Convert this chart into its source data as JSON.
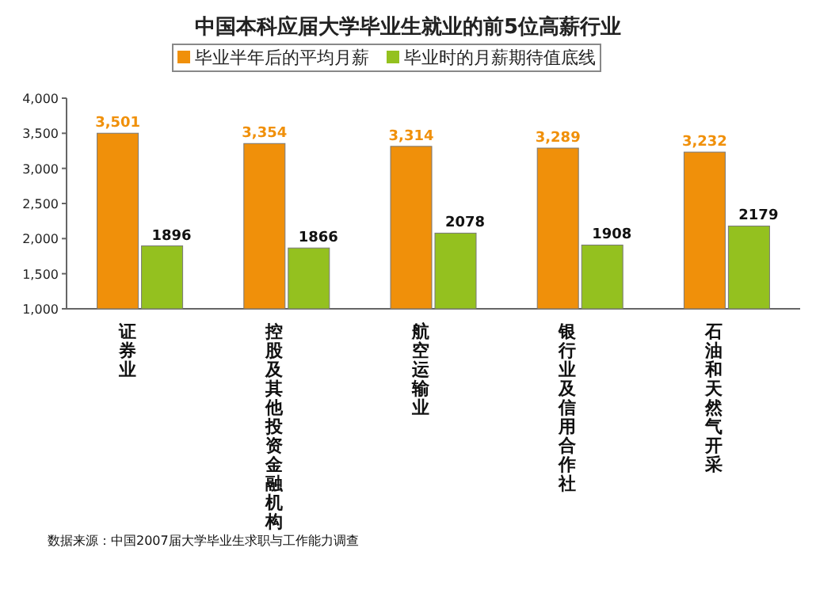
{
  "chart_data": {
    "type": "bar",
    "title": "中国本科应届大学毕业生就业的前5位高薪行业",
    "categories": [
      "证券业",
      "控股及其他投资金融机构",
      "航空运输业",
      "银行业及信用合作社",
      "石油和天然气开采"
    ],
    "series": [
      {
        "name": "毕业半年后的平均月薪",
        "color": "#f0900a",
        "values": [
          3501,
          3354,
          3314,
          3289,
          3232
        ],
        "value_labels": [
          "3,501",
          "3,354",
          "3,314",
          "3,289",
          "3,232"
        ]
      },
      {
        "name": "毕业时的月薪期待值底线",
        "color": "#94c11f",
        "values": [
          1896,
          1866,
          2078,
          1908,
          2179
        ],
        "value_labels": [
          "1896",
          "1866",
          "2078",
          "1908",
          "2179"
        ]
      }
    ],
    "ylim": [
      1000,
      4000
    ],
    "yticks": [
      {
        "value": 1000,
        "label": "1,000"
      },
      {
        "value": 1500,
        "label": "1,500"
      },
      {
        "value": 2000,
        "label": "2,000"
      },
      {
        "value": 2500,
        "label": "2,500"
      },
      {
        "value": 3000,
        "label": "3,000"
      },
      {
        "value": 3500,
        "label": "3,500"
      },
      {
        "value": 4000,
        "label": "4,000"
      }
    ],
    "legend": "top",
    "annotations": [
      "数据来源：中国2007届大学毕业生求职与工作能力调查"
    ]
  }
}
